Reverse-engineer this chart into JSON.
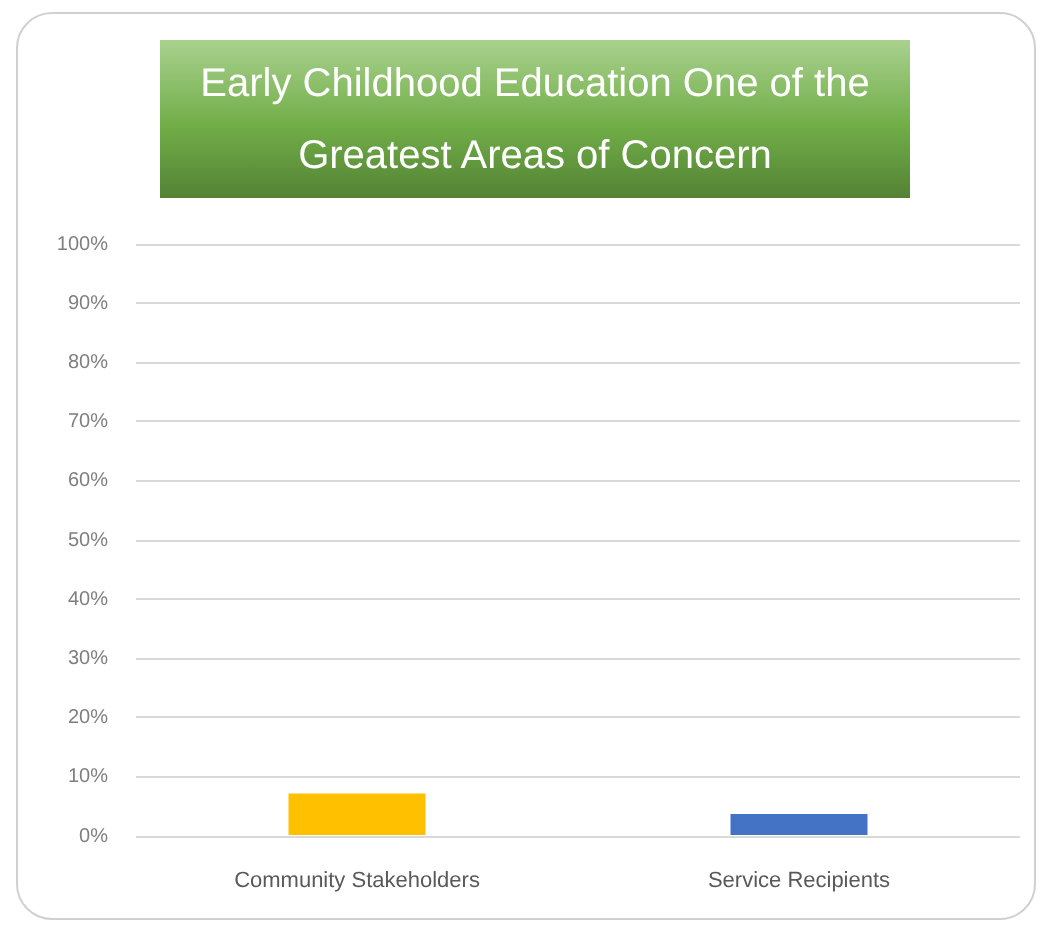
{
  "chart_data": {
    "type": "bar",
    "title": "Early Childhood Education One of the Greatest Areas of Concern",
    "categories": [
      "Community Stakeholders",
      "Service Recipients"
    ],
    "values": [
      7.2,
      3.7
    ],
    "colors": [
      "#ffc000",
      "#4472c4"
    ],
    "ylim": [
      0,
      100
    ],
    "yticks": [
      {
        "value": 0,
        "label": "0%"
      },
      {
        "value": 10,
        "label": "10%"
      },
      {
        "value": 20,
        "label": "20%"
      },
      {
        "value": 30,
        "label": "30%"
      },
      {
        "value": 40,
        "label": "40%"
      },
      {
        "value": 50,
        "label": "50%"
      },
      {
        "value": 60,
        "label": "60%"
      },
      {
        "value": 70,
        "label": "70%"
      },
      {
        "value": 80,
        "label": "80%"
      },
      {
        "value": 90,
        "label": "90%"
      },
      {
        "value": 100,
        "label": "100%"
      }
    ],
    "grid": "y"
  }
}
